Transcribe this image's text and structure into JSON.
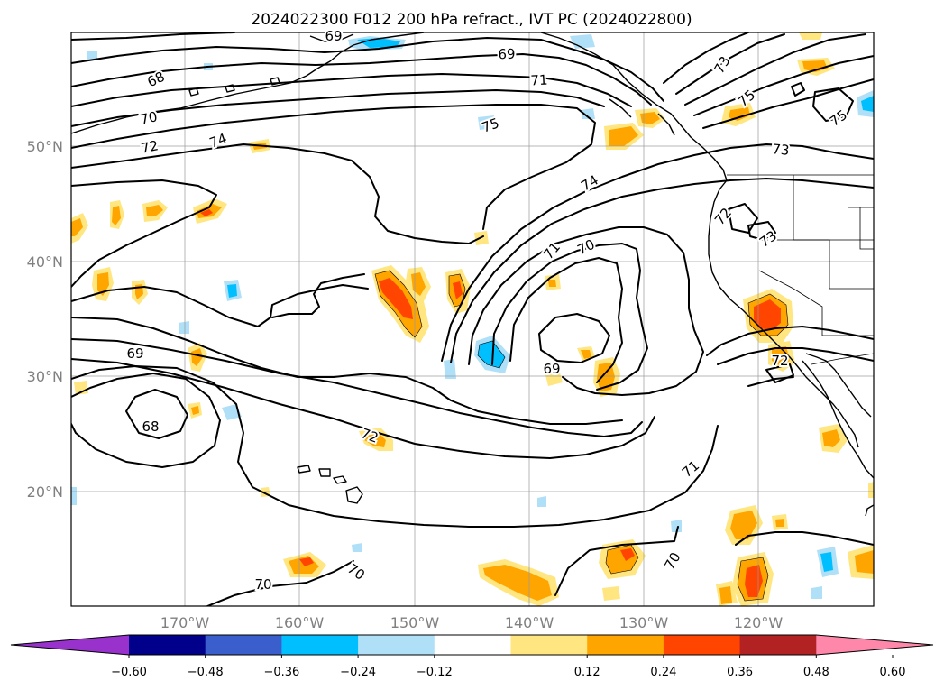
{
  "title": "2024022300 F012 200 hPa refract., IVT PC (2024022800)",
  "lat_labels": [
    "50°N",
    "40°N",
    "30°N",
    "20°N"
  ],
  "lon_labels": [
    "170°W",
    "160°W",
    "150°W",
    "140°W",
    "130°W",
    "120°W"
  ],
  "colorbar": {
    "ticks": [
      "−0.60",
      "−0.48",
      "−0.36",
      "−0.24",
      "−0.12",
      "0.12",
      "0.24",
      "0.36",
      "0.48",
      "0.60"
    ],
    "colors": [
      "#9932cc",
      "#00008b",
      "#3a5fcd",
      "#00bfff",
      "#b0e0f8",
      "#ffffff",
      "#ffe680",
      "#ffa500",
      "#ff4500",
      "#b22222",
      "#ff88aa"
    ]
  },
  "contour_labels": [
    "69",
    "69",
    "68",
    "71",
    "73",
    "75",
    "70",
    "75",
    "75",
    "72",
    "74",
    "73",
    "74",
    "72",
    "73",
    "71",
    "70",
    "69",
    "69",
    "72",
    "68",
    "72",
    "71",
    "70",
    "70",
    "70"
  ]
}
